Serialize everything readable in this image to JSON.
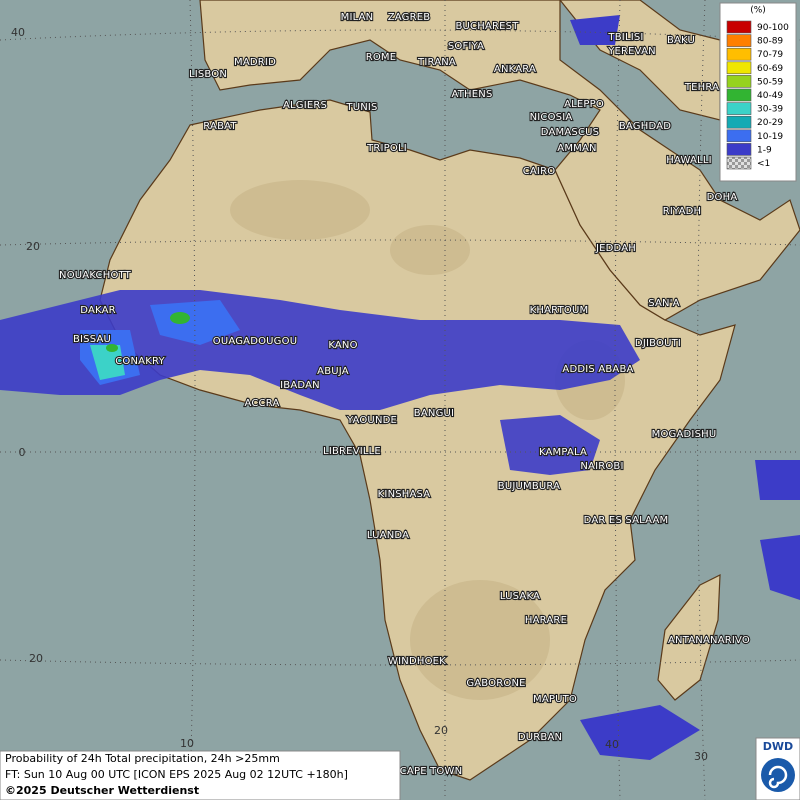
{
  "legend": {
    "unit": "(%)",
    "items": [
      {
        "label": "90-100",
        "color": "#c80000"
      },
      {
        "label": "80-89",
        "color": "#ff7f00"
      },
      {
        "label": "70-79",
        "color": "#ffbe00"
      },
      {
        "label": "60-69",
        "color": "#f0e600"
      },
      {
        "label": "50-59",
        "color": "#96d21e"
      },
      {
        "label": "40-49",
        "color": "#32b432"
      },
      {
        "label": "30-39",
        "color": "#3cd2c8"
      },
      {
        "label": "20-29",
        "color": "#14aab4"
      },
      {
        "label": "10-19",
        "color": "#3c6ef0"
      },
      {
        "label": "1-9",
        "color": "#3c3cc8"
      },
      {
        "label": "<1",
        "color": "#c8c8c8"
      }
    ]
  },
  "grid_labels": [
    "40",
    "20",
    "0",
    "20",
    "10",
    "20",
    "30",
    "40"
  ],
  "cities": [
    "MILAN",
    "ZAGREB",
    "BUCHAREST",
    "ROME",
    "SOFIYA",
    "TIRANA",
    "ANKARA",
    "TBILISI",
    "BAKU",
    "YEREVAN",
    "LISBON",
    "MADRID",
    "ALGIERS",
    "TUNIS",
    "ATHENS",
    "ALEPPO",
    "TEHRA",
    "RABAT",
    "NICOSIA",
    "BAGHDAD",
    "DAMASCUS",
    "TRIPOLI",
    "AMMAN",
    "HAWALLI",
    "CAIRO",
    "DOHA",
    "RIYADH",
    "JEDDAH",
    "NOUAKCHOTT",
    "SAN'A",
    "DAKAR",
    "KHARTOUM",
    "BISSAU",
    "OUAGADOUGOU",
    "KANO",
    "DJIBOUTI",
    "CONAKRY",
    "ABUJA",
    "ADDIS ABABA",
    "IBADAN",
    "ACCRA",
    "BANGUI",
    "YAOUNDE",
    "MOGADISHU",
    "LIBREVILLE",
    "KAMPALA",
    "NAIROBI",
    "BUJUMBURA",
    "KINSHASA",
    "DAR ES SALAAM",
    "LUANDA",
    "LUSAKA",
    "HARARE",
    "ANTANANARIVO",
    "WINDHOEK",
    "GABORONE",
    "MAPUTO",
    "DURBAN",
    "CAPE TOWN"
  ],
  "footer": {
    "line1": "Probability of 24h Total precipitation, 24h >25mm",
    "line2": "FT: Sun 10 Aug 00 UTC [ICON EPS 2025 Aug 02 12UTC +180h]",
    "line3": "©2025 Deutscher Wetterdienst"
  },
  "logo": "DWD"
}
